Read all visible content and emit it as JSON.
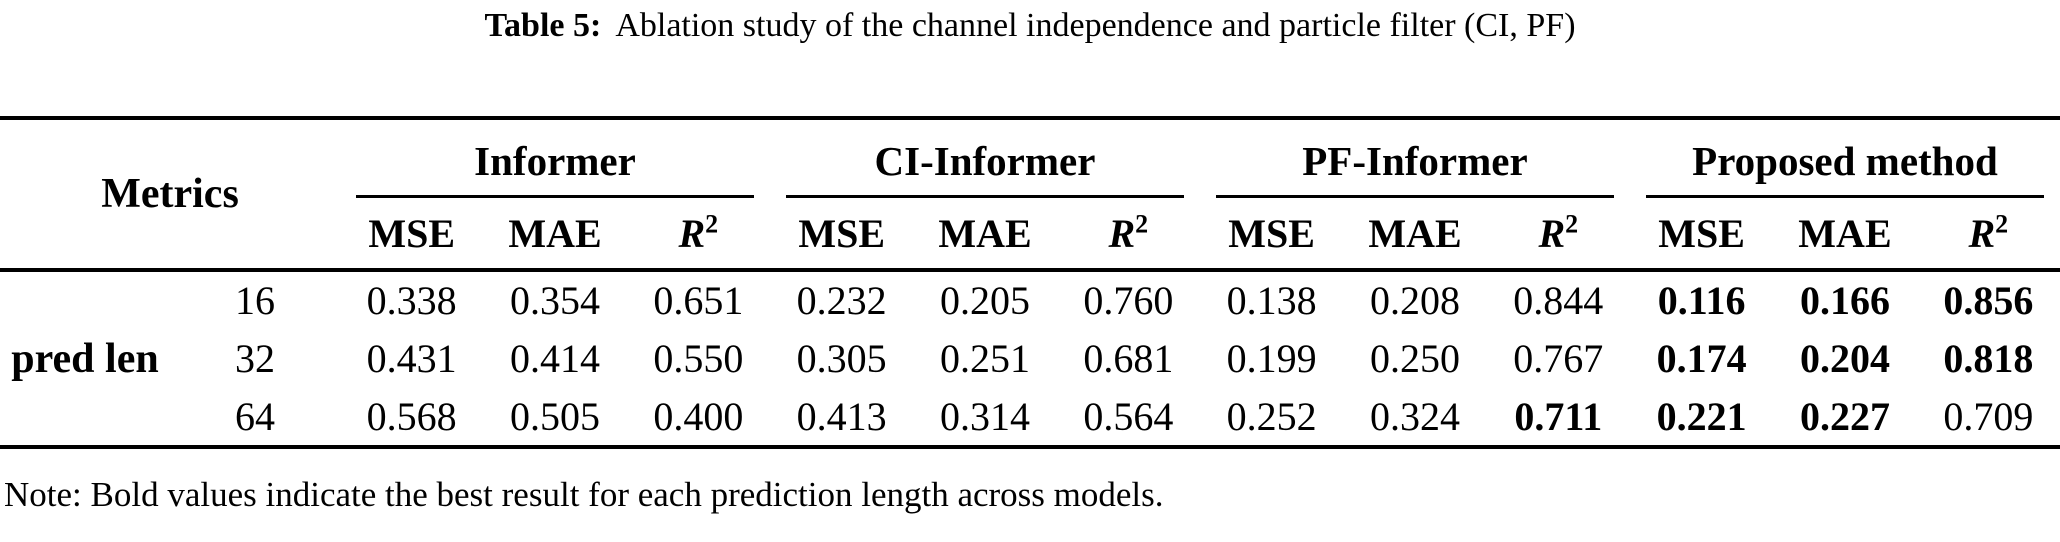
{
  "caption": {
    "label": "Table 5:",
    "text": "Ablation study of the channel independence and particle filter (CI, PF)"
  },
  "table": {
    "metrics_header": "Metrics",
    "row_group_label": "pred len",
    "groups": [
      {
        "label": "Informer"
      },
      {
        "label": "CI-Informer"
      },
      {
        "label": "PF-Informer"
      },
      {
        "label": "Proposed method"
      }
    ],
    "metric_labels": {
      "mse": "MSE",
      "mae": "MAE",
      "r2_base": "R",
      "r2_sup": "2"
    },
    "rows": [
      {
        "pred_len": "16",
        "cells": [
          {
            "v": "0.338",
            "b": false
          },
          {
            "v": "0.354",
            "b": false
          },
          {
            "v": "0.651",
            "b": false
          },
          {
            "v": "0.232",
            "b": false
          },
          {
            "v": "0.205",
            "b": false
          },
          {
            "v": "0.760",
            "b": false
          },
          {
            "v": "0.138",
            "b": false
          },
          {
            "v": "0.208",
            "b": false
          },
          {
            "v": "0.844",
            "b": false
          },
          {
            "v": "0.116",
            "b": true
          },
          {
            "v": "0.166",
            "b": true
          },
          {
            "v": "0.856",
            "b": true
          }
        ]
      },
      {
        "pred_len": "32",
        "cells": [
          {
            "v": "0.431",
            "b": false
          },
          {
            "v": "0.414",
            "b": false
          },
          {
            "v": "0.550",
            "b": false
          },
          {
            "v": "0.305",
            "b": false
          },
          {
            "v": "0.251",
            "b": false
          },
          {
            "v": "0.681",
            "b": false
          },
          {
            "v": "0.199",
            "b": false
          },
          {
            "v": "0.250",
            "b": false
          },
          {
            "v": "0.767",
            "b": false
          },
          {
            "v": "0.174",
            "b": true
          },
          {
            "v": "0.204",
            "b": true
          },
          {
            "v": "0.818",
            "b": true
          }
        ]
      },
      {
        "pred_len": "64",
        "cells": [
          {
            "v": "0.568",
            "b": false
          },
          {
            "v": "0.505",
            "b": false
          },
          {
            "v": "0.400",
            "b": false
          },
          {
            "v": "0.413",
            "b": false
          },
          {
            "v": "0.314",
            "b": false
          },
          {
            "v": "0.564",
            "b": false
          },
          {
            "v": "0.252",
            "b": false
          },
          {
            "v": "0.324",
            "b": false
          },
          {
            "v": "0.711",
            "b": true
          },
          {
            "v": "0.221",
            "b": true
          },
          {
            "v": "0.227",
            "b": true
          },
          {
            "v": "0.709",
            "b": false
          }
        ]
      }
    ]
  },
  "note": "Note: Bold values indicate the best result for each prediction length across models.",
  "colors": {
    "text": "#000000",
    "background": "#ffffff",
    "rule": "#000000"
  }
}
